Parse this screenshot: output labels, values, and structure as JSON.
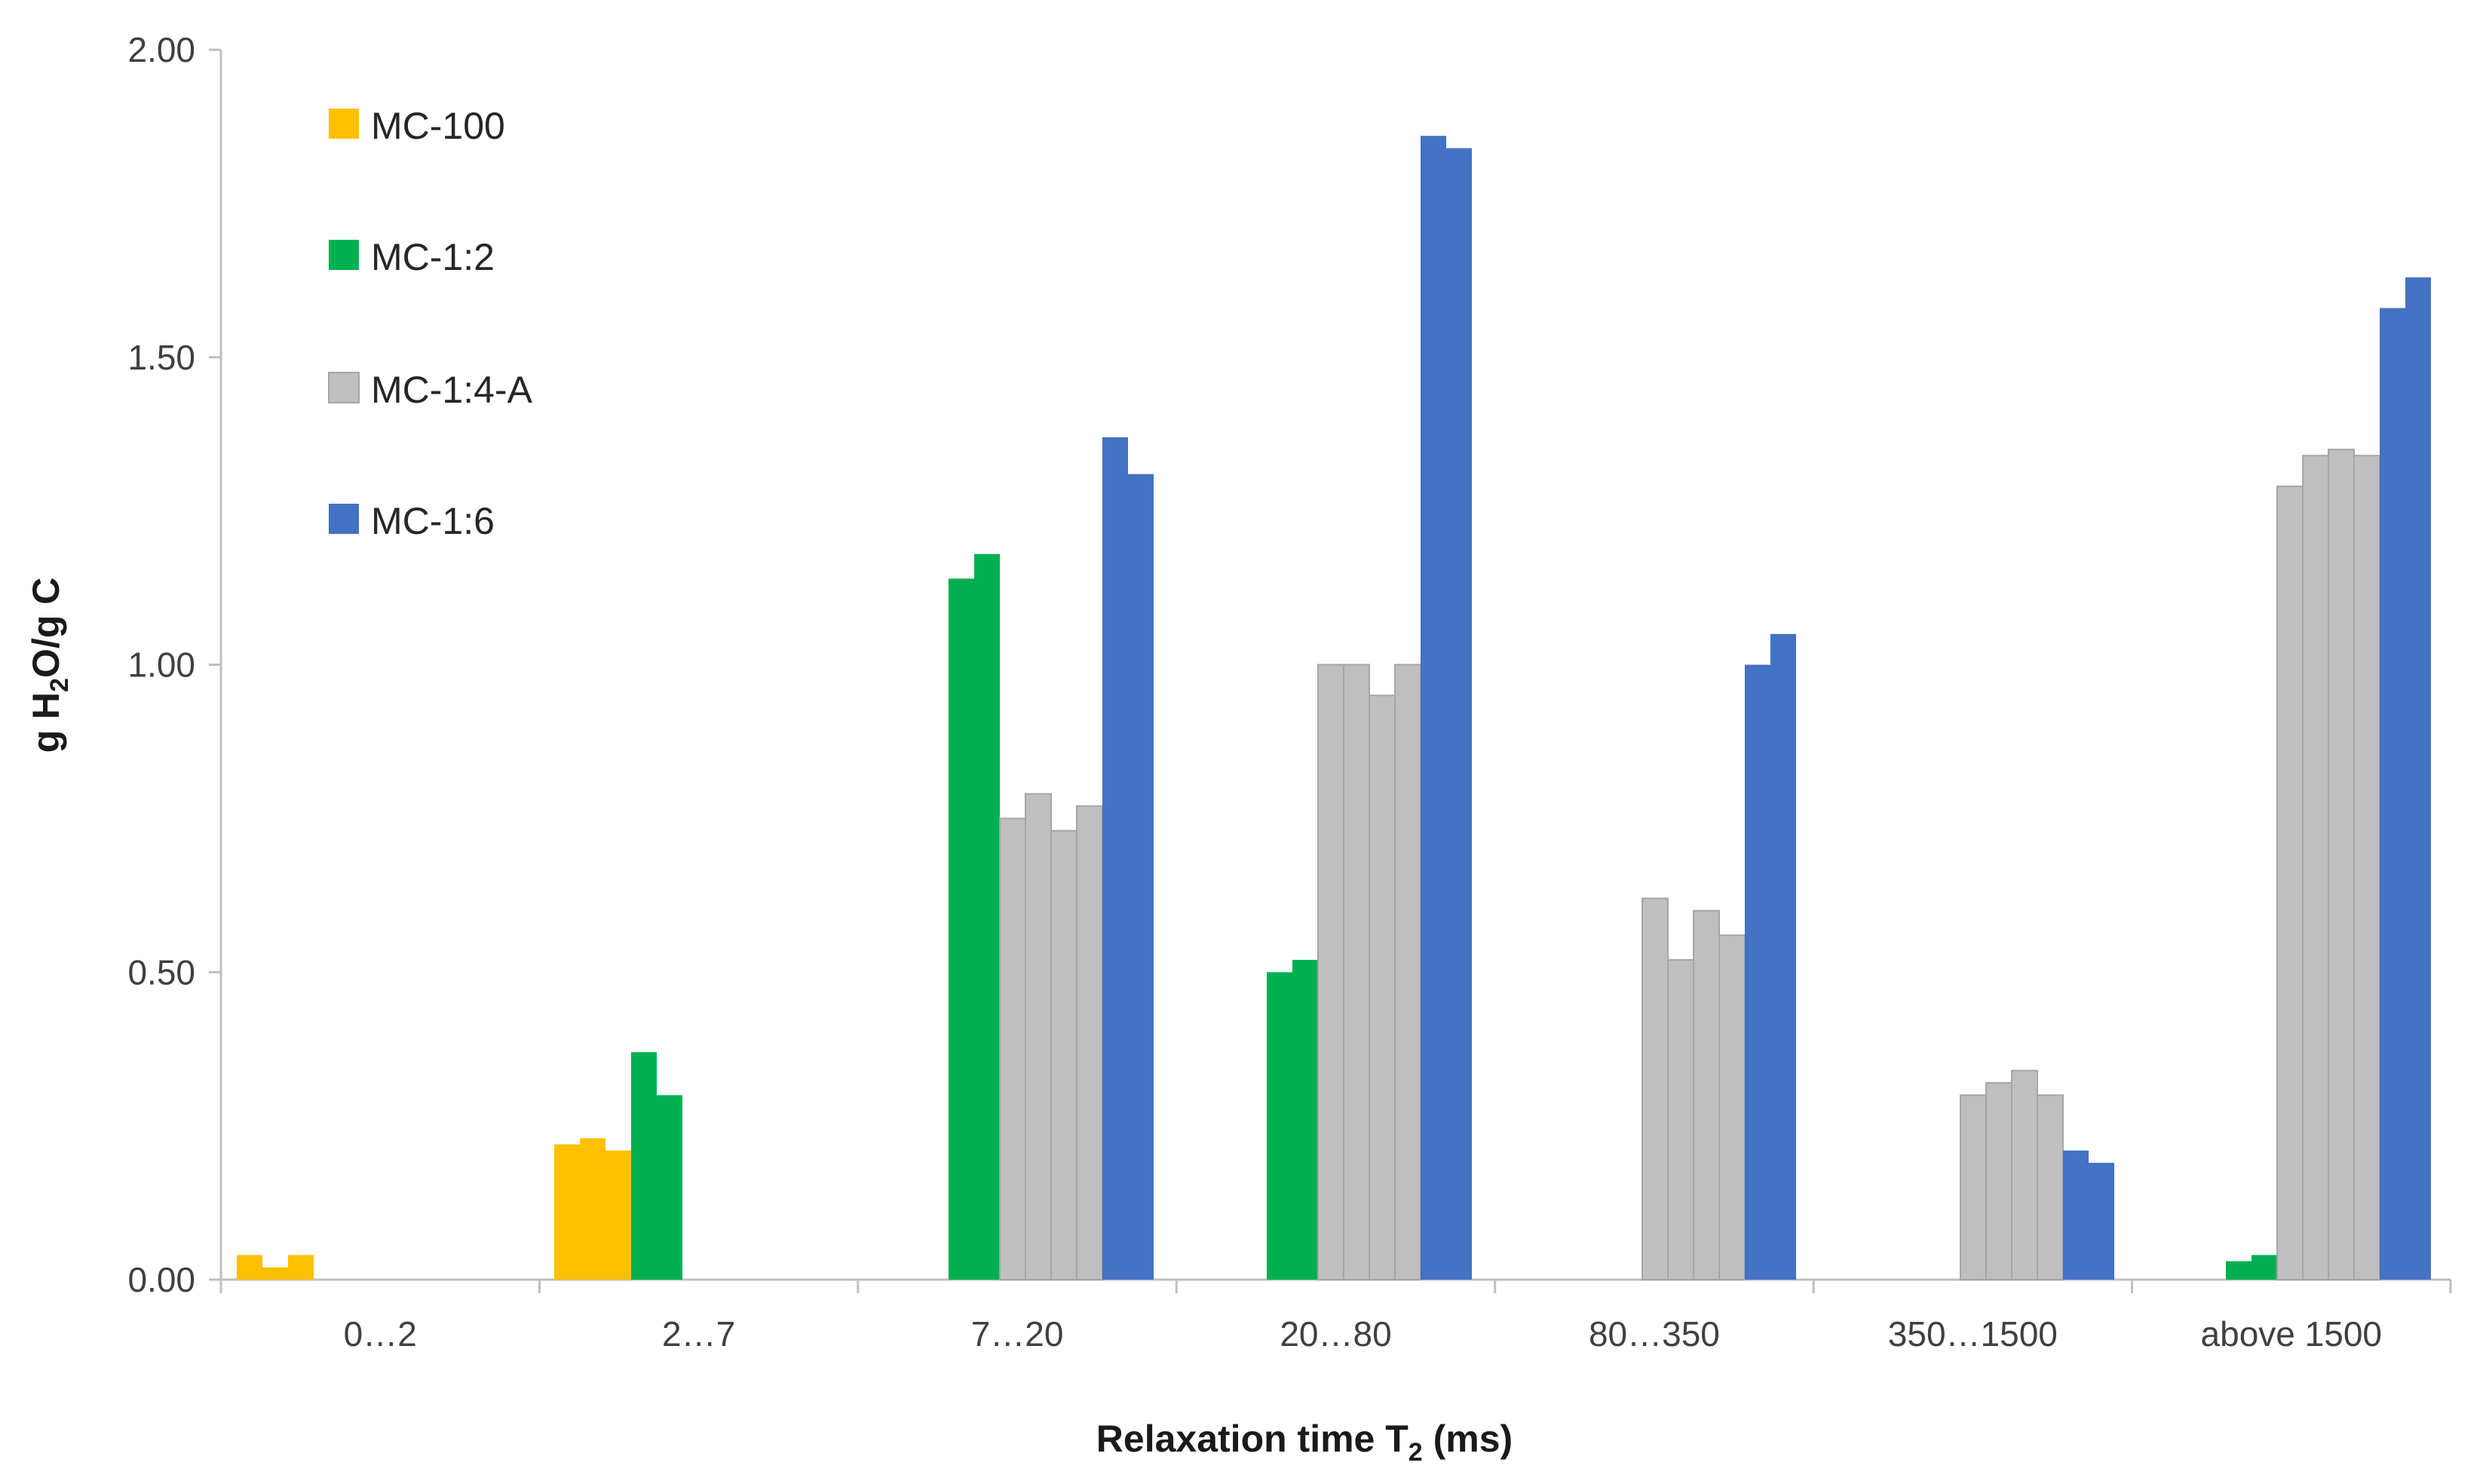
{
  "chart_data": {
    "type": "bar",
    "title": "",
    "xlabel": {
      "main": "Relaxation time T",
      "sub": "2",
      "suffix": " (ms)"
    },
    "ylabel": {
      "p1": "g H",
      "sub": "2",
      "p2": "O/g C"
    },
    "ylim": [
      0,
      2
    ],
    "yticks": [
      "0.00",
      "0.50",
      "1.00",
      "1.50",
      "2.00"
    ],
    "ytick_values": [
      0,
      0.5,
      1.0,
      1.5,
      2.0
    ],
    "categories": [
      "0…2",
      "2…7",
      "7…20",
      "20…80",
      "80…350",
      "350…1500",
      "above 1500"
    ],
    "legend": [
      {
        "name": "MC-100",
        "color": "#FFC000"
      },
      {
        "name": "MC-1:2",
        "color": "#00B050"
      },
      {
        "name": "MC-1:4-A",
        "color": "#BFBFBF"
      },
      {
        "name": "MC-1:6",
        "color": "#4472C4"
      }
    ],
    "groups": [
      {
        "category": "0…2",
        "bars": [
          {
            "series": "MC-100",
            "value": 0.04
          },
          {
            "series": "MC-100",
            "value": 0.02
          },
          {
            "series": "MC-100",
            "value": 0.04
          }
        ]
      },
      {
        "category": "2…7",
        "bars": [
          {
            "series": "MC-100",
            "value": 0.22
          },
          {
            "series": "MC-100",
            "value": 0.23
          },
          {
            "series": "MC-100",
            "value": 0.21
          },
          {
            "series": "MC-1:2",
            "value": 0.37
          },
          {
            "series": "MC-1:2",
            "value": 0.3
          }
        ]
      },
      {
        "category": "7…20",
        "bars": [
          {
            "series": "MC-1:2",
            "value": 1.14
          },
          {
            "series": "MC-1:2",
            "value": 1.18
          },
          {
            "series": "MC-1:4-A",
            "value": 0.75
          },
          {
            "series": "MC-1:4-A",
            "value": 0.79
          },
          {
            "series": "MC-1:4-A",
            "value": 0.73
          },
          {
            "series": "MC-1:4-A",
            "value": 0.77
          },
          {
            "series": "MC-1:6",
            "value": 1.37
          },
          {
            "series": "MC-1:6",
            "value": 1.31
          }
        ]
      },
      {
        "category": "20…80",
        "bars": [
          {
            "series": "MC-1:2",
            "value": 0.5
          },
          {
            "series": "MC-1:2",
            "value": 0.52
          },
          {
            "series": "MC-1:4-A",
            "value": 1.0
          },
          {
            "series": "MC-1:4-A",
            "value": 1.0
          },
          {
            "series": "MC-1:4-A",
            "value": 0.95
          },
          {
            "series": "MC-1:4-A",
            "value": 1.0
          },
          {
            "series": "MC-1:6",
            "value": 1.86
          },
          {
            "series": "MC-1:6",
            "value": 1.84
          }
        ]
      },
      {
        "category": "80…350",
        "bars": [
          {
            "series": "MC-1:4-A",
            "value": 0.62
          },
          {
            "series": "MC-1:4-A",
            "value": 0.52
          },
          {
            "series": "MC-1:4-A",
            "value": 0.6
          },
          {
            "series": "MC-1:4-A",
            "value": 0.56
          },
          {
            "series": "MC-1:6",
            "value": 1.0
          },
          {
            "series": "MC-1:6",
            "value": 1.05
          }
        ]
      },
      {
        "category": "350…1500",
        "bars": [
          {
            "series": "MC-1:4-A",
            "value": 0.3
          },
          {
            "series": "MC-1:4-A",
            "value": 0.32
          },
          {
            "series": "MC-1:4-A",
            "value": 0.34
          },
          {
            "series": "MC-1:4-A",
            "value": 0.3
          },
          {
            "series": "MC-1:6",
            "value": 0.21
          },
          {
            "series": "MC-1:6",
            "value": 0.19
          }
        ]
      },
      {
        "category": "above 1500",
        "bars": [
          {
            "series": "MC-1:2",
            "value": 0.03
          },
          {
            "series": "MC-1:2",
            "value": 0.04
          },
          {
            "series": "MC-1:4-A",
            "value": 1.29
          },
          {
            "series": "MC-1:4-A",
            "value": 1.34
          },
          {
            "series": "MC-1:4-A",
            "value": 1.35
          },
          {
            "series": "MC-1:4-A",
            "value": 1.34
          },
          {
            "series": "MC-1:6",
            "value": 1.58
          },
          {
            "series": "MC-1:6",
            "value": 1.63
          }
        ]
      }
    ]
  }
}
